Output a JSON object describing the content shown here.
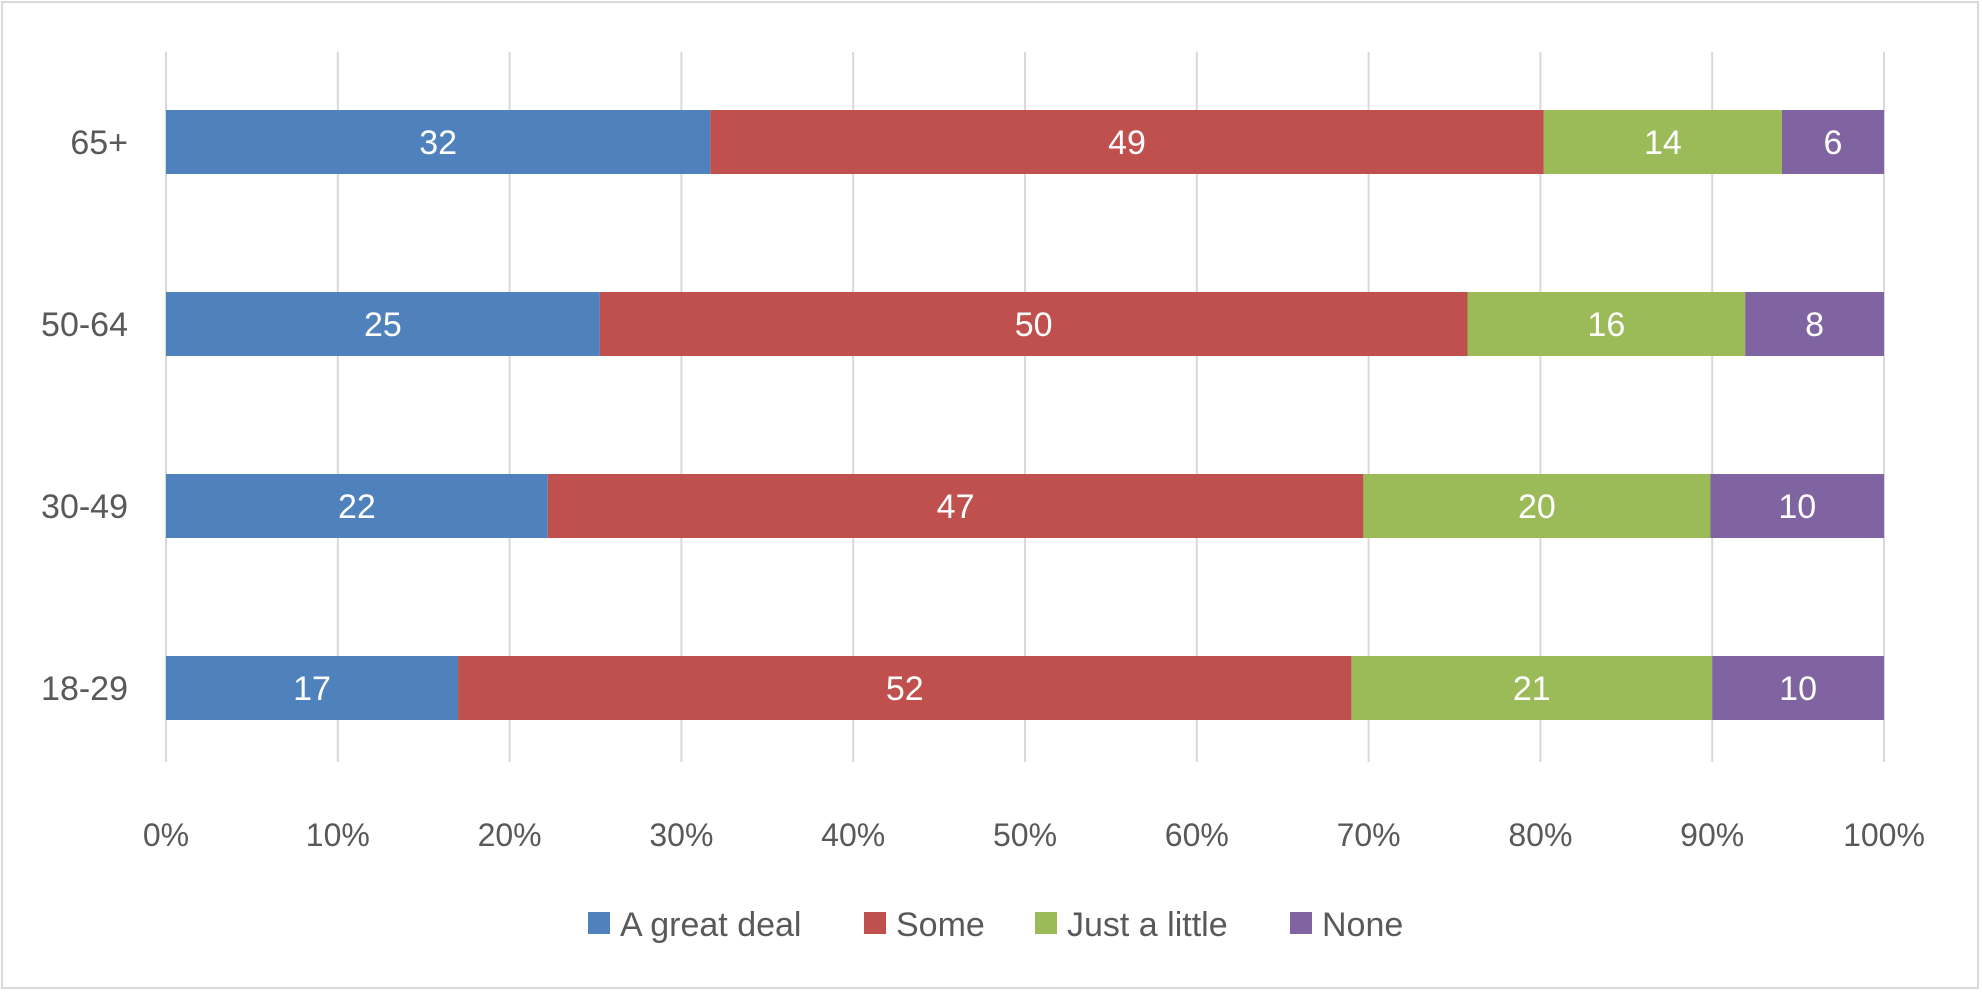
{
  "chart_data": {
    "type": "bar",
    "orientation": "horizontal",
    "stacked": true,
    "categories": [
      "65+",
      "50-64",
      "30-49",
      "18-29"
    ],
    "series": [
      {
        "name": "A great deal",
        "color": "#4f81bd",
        "values": [
          32,
          25,
          22,
          17
        ]
      },
      {
        "name": "Some",
        "color": "#c0504d",
        "values": [
          49,
          50,
          47,
          52
        ]
      },
      {
        "name": "Just a little",
        "color": "#9bbb59",
        "values": [
          14,
          16,
          20,
          21
        ]
      },
      {
        "name": "None",
        "color": "#8064a2",
        "values": [
          6,
          8,
          10,
          10
        ]
      }
    ],
    "x_ticks": [
      "0%",
      "10%",
      "20%",
      "30%",
      "40%",
      "50%",
      "60%",
      "70%",
      "80%",
      "90%",
      "100%"
    ],
    "xlim": [
      0,
      100
    ],
    "grid": true,
    "legend": "bottom",
    "data_labels": true
  }
}
